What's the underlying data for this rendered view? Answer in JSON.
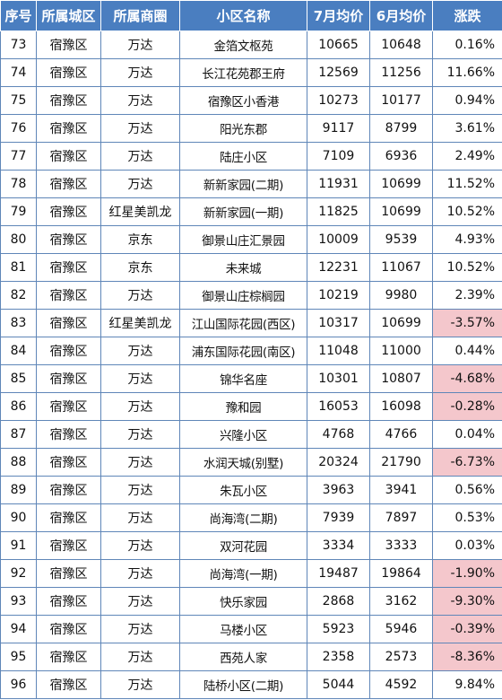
{
  "headers": [
    "序号",
    "所属城区",
    "所属商圈",
    "小区名称",
    "7月均价",
    "6月均价",
    "涨跌"
  ],
  "rows": [
    [
      "73",
      "宿豫区",
      "万达",
      "金箔文枢苑",
      "10665",
      "10648",
      "0.16%"
    ],
    [
      "74",
      "宿豫区",
      "万达",
      "长江花苑郡王府",
      "12569",
      "11256",
      "11.66%"
    ],
    [
      "75",
      "宿豫区",
      "万达",
      "宿豫区小香港",
      "10273",
      "10177",
      "0.94%"
    ],
    [
      "76",
      "宿豫区",
      "万达",
      "阳光东郡",
      "9117",
      "8799",
      "3.61%"
    ],
    [
      "77",
      "宿豫区",
      "万达",
      "陆庄小区",
      "7109",
      "6936",
      "2.49%"
    ],
    [
      "78",
      "宿豫区",
      "万达",
      "新新家园(二期)",
      "11931",
      "10699",
      "11.52%"
    ],
    [
      "79",
      "宿豫区",
      "红星美凯龙",
      "新新家园(一期)",
      "11825",
      "10699",
      "10.52%"
    ],
    [
      "80",
      "宿豫区",
      "京东",
      "御景山庄汇景园",
      "10009",
      "9539",
      "4.93%"
    ],
    [
      "81",
      "宿豫区",
      "京东",
      "未来城",
      "12231",
      "11067",
      "10.52%"
    ],
    [
      "82",
      "宿豫区",
      "万达",
      "御景山庄棕榈园",
      "10219",
      "9980",
      "2.39%"
    ],
    [
      "83",
      "宿豫区",
      "红星美凯龙",
      "江山国际花园(西区)",
      "10317",
      "10699",
      "-3.57%"
    ],
    [
      "84",
      "宿豫区",
      "万达",
      "浦东国际花园(南区)",
      "11048",
      "11000",
      "0.44%"
    ],
    [
      "85",
      "宿豫区",
      "万达",
      "锦华名座",
      "10301",
      "10807",
      "-4.68%"
    ],
    [
      "86",
      "宿豫区",
      "万达",
      "豫和园",
      "16053",
      "16098",
      "-0.28%"
    ],
    [
      "87",
      "宿豫区",
      "万达",
      "兴隆小区",
      "4768",
      "4766",
      "0.04%"
    ],
    [
      "88",
      "宿豫区",
      "万达",
      "水润天城(别墅)",
      "20324",
      "21790",
      "-6.73%"
    ],
    [
      "89",
      "宿豫区",
      "万达",
      "朱瓦小区",
      "3963",
      "3941",
      "0.56%"
    ],
    [
      "90",
      "宿豫区",
      "万达",
      "尚海湾(二期)",
      "7939",
      "7897",
      "0.53%"
    ],
    [
      "91",
      "宿豫区",
      "万达",
      "双河花园",
      "3334",
      "3333",
      "0.03%"
    ],
    [
      "92",
      "宿豫区",
      "万达",
      "尚海湾(一期)",
      "19487",
      "19864",
      "-1.90%"
    ],
    [
      "93",
      "宿豫区",
      "万达",
      "快乐家园",
      "2868",
      "3162",
      "-9.30%"
    ],
    [
      "94",
      "宿豫区",
      "万达",
      "马楼小区",
      "5923",
      "5946",
      "-0.39%"
    ],
    [
      "95",
      "宿豫区",
      "万达",
      "西苑人家",
      "2358",
      "2573",
      "-8.36%"
    ],
    [
      "96",
      "宿豫区",
      "万达",
      "陆桥小区(二期)",
      "5044",
      "4592",
      "9.84%"
    ]
  ],
  "colors": {
    "header_bg": "#4a7ec0",
    "header_text": "#ffffff",
    "negative_bg": "#f4c7cc",
    "border": "#5f86b8"
  }
}
